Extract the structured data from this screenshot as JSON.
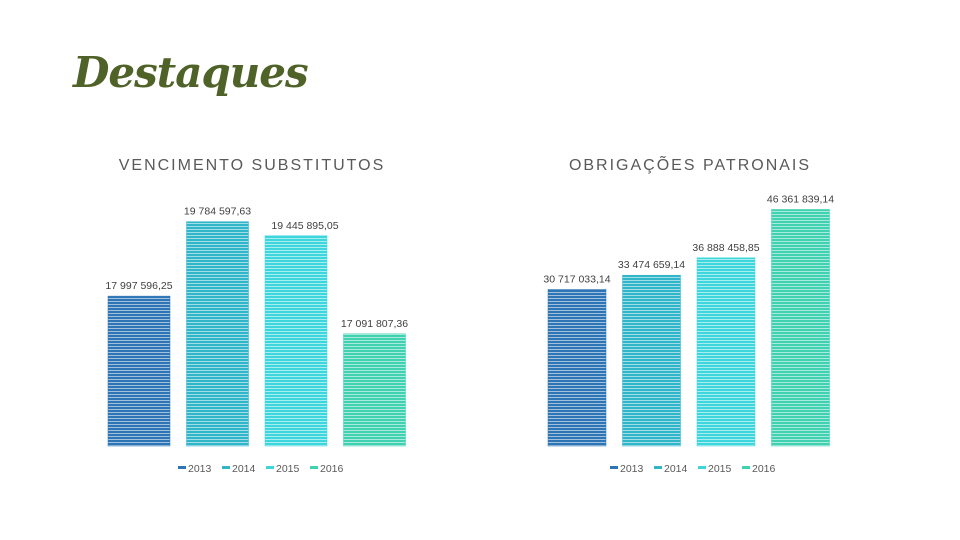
{
  "slide": {
    "title": "Destaques",
    "title_color": "#4f6228"
  },
  "legend": [
    "2013",
    "2014",
    "2015",
    "2016"
  ],
  "colors": [
    "#2e75b6",
    "#31b6c9",
    "#3ed6dd",
    "#3fd1b0"
  ],
  "chart_data": [
    {
      "type": "bar",
      "title": "VENCIMENTO SUBSTITUTOS",
      "categories": [
        "2013",
        "2014",
        "2015",
        "2016"
      ],
      "values": [
        17997596.25,
        19784597.63,
        19445895.05,
        17091807.36
      ],
      "data_labels": [
        "17 997 596,25",
        "19 784 597,63",
        "19 445 895,05",
        "17 091 807,36"
      ],
      "ylim": [
        14400000,
        20400000
      ],
      "legend": "bottom",
      "grid": false
    },
    {
      "type": "bar",
      "title": "OBRIGAÇÕES PATRONAIS",
      "categories": [
        "2013",
        "2014",
        "2015",
        "2016"
      ],
      "values": [
        30717033.14,
        33474659.14,
        36888458.85,
        46361839.14
      ],
      "data_labels": [
        "30 717 033,14",
        "33 474 659,14",
        "36 888 458,85",
        "46 361 839,14"
      ],
      "ylim": [
        0,
        49000000
      ],
      "legend": "bottom",
      "grid": false
    }
  ]
}
